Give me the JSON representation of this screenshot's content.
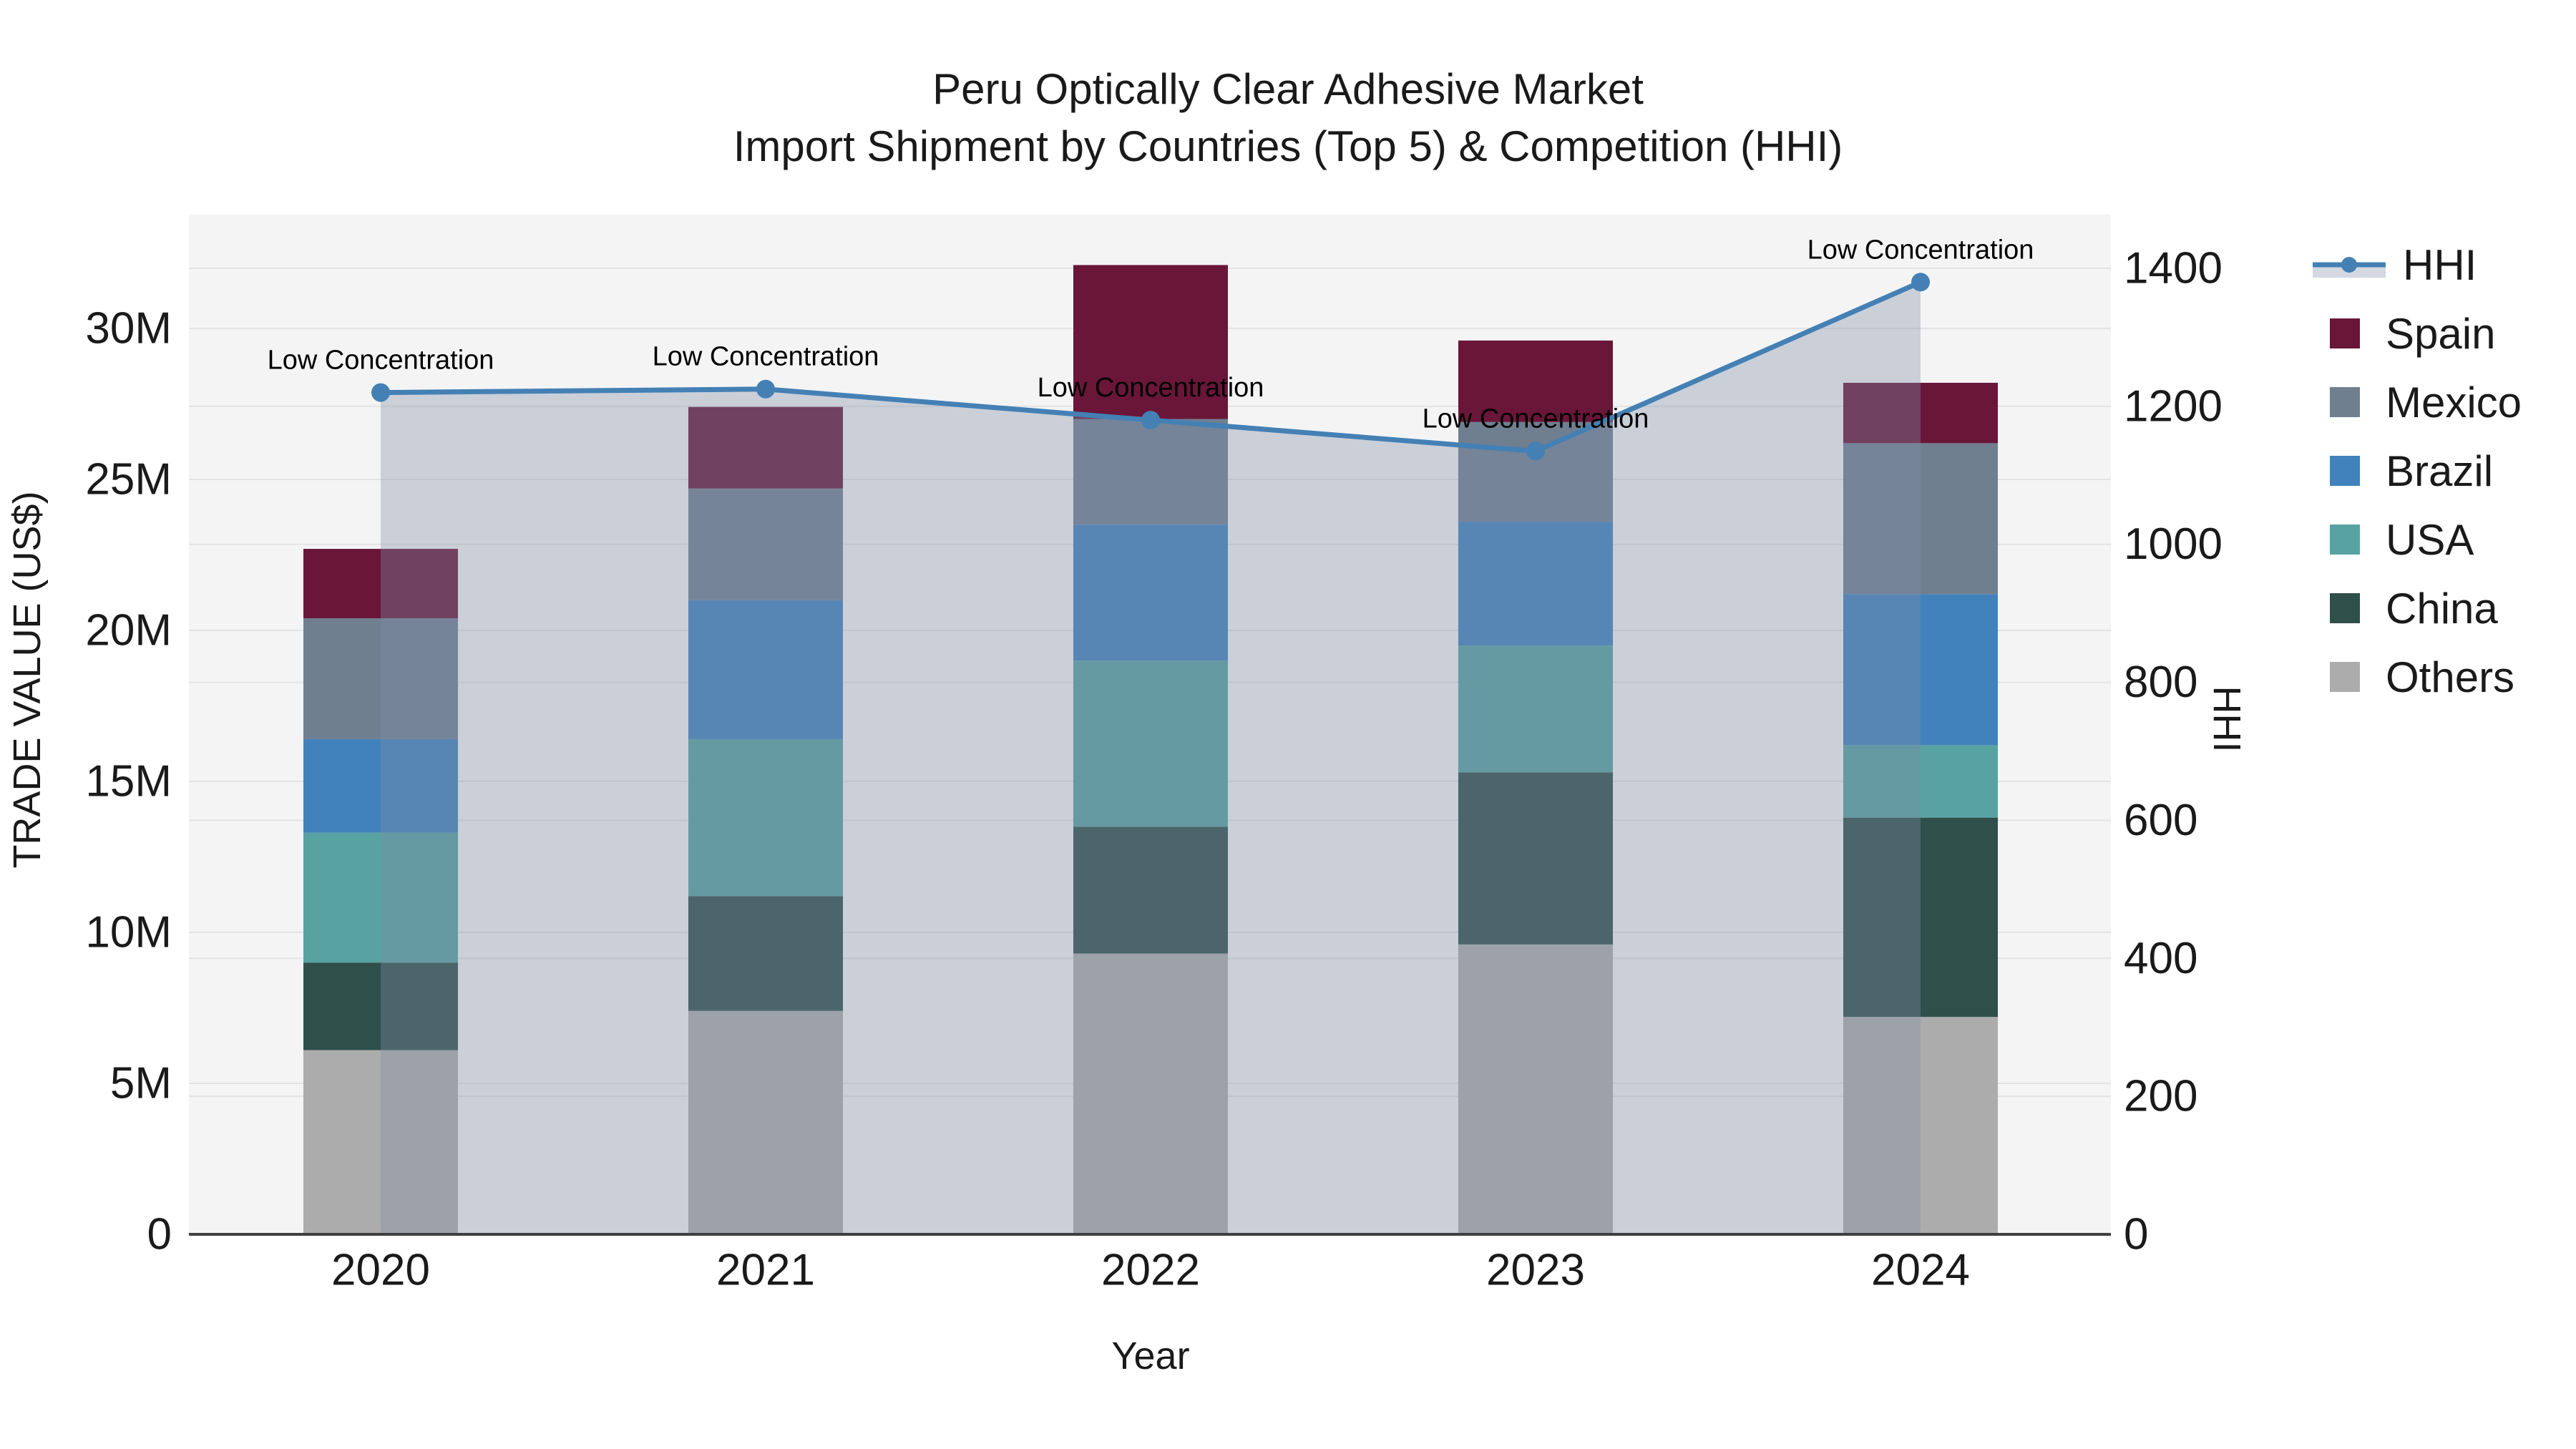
{
  "title": {
    "line1": "Peru Optically Clear Adhesive Market",
    "line2": "Import Shipment by Countries (Top 5) & Competition (HHI)"
  },
  "colors": {
    "plot_bg": "#f4f4f5",
    "gridline": "#e3e3e5",
    "zeroline": "#3f3f3f",
    "hhi_line": "#4480b4",
    "hhi_area_fill": "rgba(128,140,166,0.36)",
    "spain": "#691639",
    "mexico": "#6f7f90",
    "brazil": "#4182bc",
    "usa": "#58a2a2",
    "china": "#2f4f4a",
    "others": "#acacac"
  },
  "legend": {
    "items": [
      {
        "label": "HHI",
        "type": "line",
        "color": "#4480b4",
        "fill": "#d3d8e1"
      },
      {
        "label": "Spain",
        "type": "swatch",
        "color": "#691639"
      },
      {
        "label": "Mexico",
        "type": "swatch",
        "color": "#6f7f90"
      },
      {
        "label": "Brazil",
        "type": "swatch",
        "color": "#4182bc"
      },
      {
        "label": "USA",
        "type": "swatch",
        "color": "#58a2a2"
      },
      {
        "label": "China",
        "type": "swatch",
        "color": "#2f4f4a"
      },
      {
        "label": "Others",
        "type": "swatch",
        "color": "#acacac"
      }
    ]
  },
  "chart_data": {
    "type": "combo-stacked-bar-line",
    "categories": [
      "2020",
      "2021",
      "2022",
      "2023",
      "2024"
    ],
    "bar_series": [
      {
        "name": "Spain",
        "color": "#691639",
        "values": [
          2.3,
          2.7,
          5.1,
          2.7,
          2.0
        ]
      },
      {
        "name": "Mexico",
        "color": "#6f7f90",
        "values": [
          4.0,
          3.7,
          3.5,
          3.3,
          5.0
        ]
      },
      {
        "name": "Brazil",
        "color": "#4182bc",
        "values": [
          3.1,
          4.6,
          4.5,
          4.1,
          5.0
        ]
      },
      {
        "name": "USA",
        "color": "#58a2a2",
        "values": [
          4.3,
          5.2,
          5.5,
          4.2,
          2.4
        ]
      },
      {
        "name": "China",
        "color": "#2f4f4a",
        "values": [
          2.9,
          3.8,
          4.2,
          5.7,
          6.6
        ]
      },
      {
        "name": "Others",
        "color": "#acacac",
        "values": [
          6.1,
          7.4,
          9.3,
          9.6,
          7.2
        ]
      }
    ],
    "stack_bottom_to_top": [
      "Others",
      "China",
      "USA",
      "Brazil",
      "Mexico",
      "Spain"
    ],
    "bar_totals_musd": [
      22.7,
      27.4,
      32.1,
      29.6,
      28.2
    ],
    "line_series": {
      "name": "HHI",
      "axis": "right",
      "values": [
        1220,
        1225,
        1180,
        1135,
        1380
      ],
      "point_annotations": [
        "Low Concentration",
        "Low Concentration",
        "Low Concentration",
        "Low Concentration",
        "Low Concentration"
      ]
    },
    "xlabel": "Year",
    "ylabel_left": "TRADE VALUE (US$)",
    "ylabel_right": "HHI",
    "y_left_ticks": [
      "0",
      "5M",
      "10M",
      "15M",
      "20M",
      "25M",
      "30M"
    ],
    "y_left_tick_values": [
      0,
      5,
      10,
      15,
      20,
      25,
      30
    ],
    "y_right_ticks": [
      "0",
      "200",
      "400",
      "600",
      "800",
      "1000",
      "1200",
      "1400"
    ],
    "y_right_tick_values": [
      0,
      200,
      400,
      600,
      800,
      1000,
      1200,
      1400
    ],
    "ylim_left_musd": [
      0,
      33.8
    ],
    "ylim_right": [
      0,
      1478
    ],
    "grid": "both-axes-horizontal",
    "legend_position": "right-outside"
  }
}
